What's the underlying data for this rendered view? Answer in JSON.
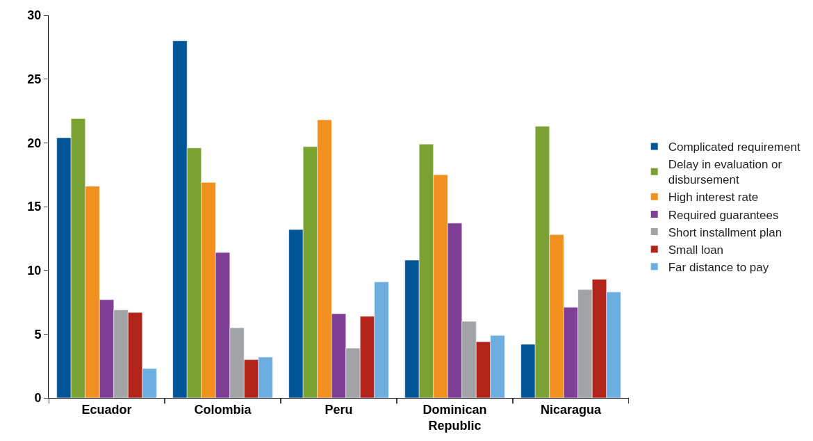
{
  "chart_data": {
    "type": "bar",
    "categories": [
      "Ecuador",
      "Colombia",
      "Peru",
      "Dominican Republic",
      "Nicaragua"
    ],
    "series": [
      {
        "name": "Complicated requirement",
        "color": "#005696",
        "values": [
          20.4,
          28.0,
          13.2,
          10.8,
          4.2
        ]
      },
      {
        "name": "Delay in evaluation or disbursement",
        "color": "#7aa232",
        "values": [
          21.9,
          19.6,
          19.7,
          19.9,
          21.3
        ]
      },
      {
        "name": "High interest rate",
        "color": "#f2901f",
        "values": [
          16.6,
          16.9,
          21.8,
          17.5,
          12.8
        ]
      },
      {
        "name": "Required guarantees",
        "color": "#7f3f97",
        "values": [
          7.7,
          11.4,
          6.6,
          13.7,
          7.1
        ]
      },
      {
        "name": "Short installment plan",
        "color": "#a2a3a6",
        "values": [
          6.9,
          5.5,
          3.9,
          6.0,
          8.5
        ]
      },
      {
        "name": "Small loan",
        "color": "#b2231a",
        "values": [
          6.7,
          3.0,
          6.4,
          4.4,
          9.3
        ]
      },
      {
        "name": "Far distance to pay",
        "color": "#6dade0",
        "values": [
          2.3,
          3.2,
          9.1,
          4.9,
          8.3
        ]
      }
    ],
    "ylim": [
      0,
      30
    ],
    "yticks": [
      0,
      5,
      10,
      15,
      20,
      25,
      30
    ],
    "legend": "right"
  }
}
